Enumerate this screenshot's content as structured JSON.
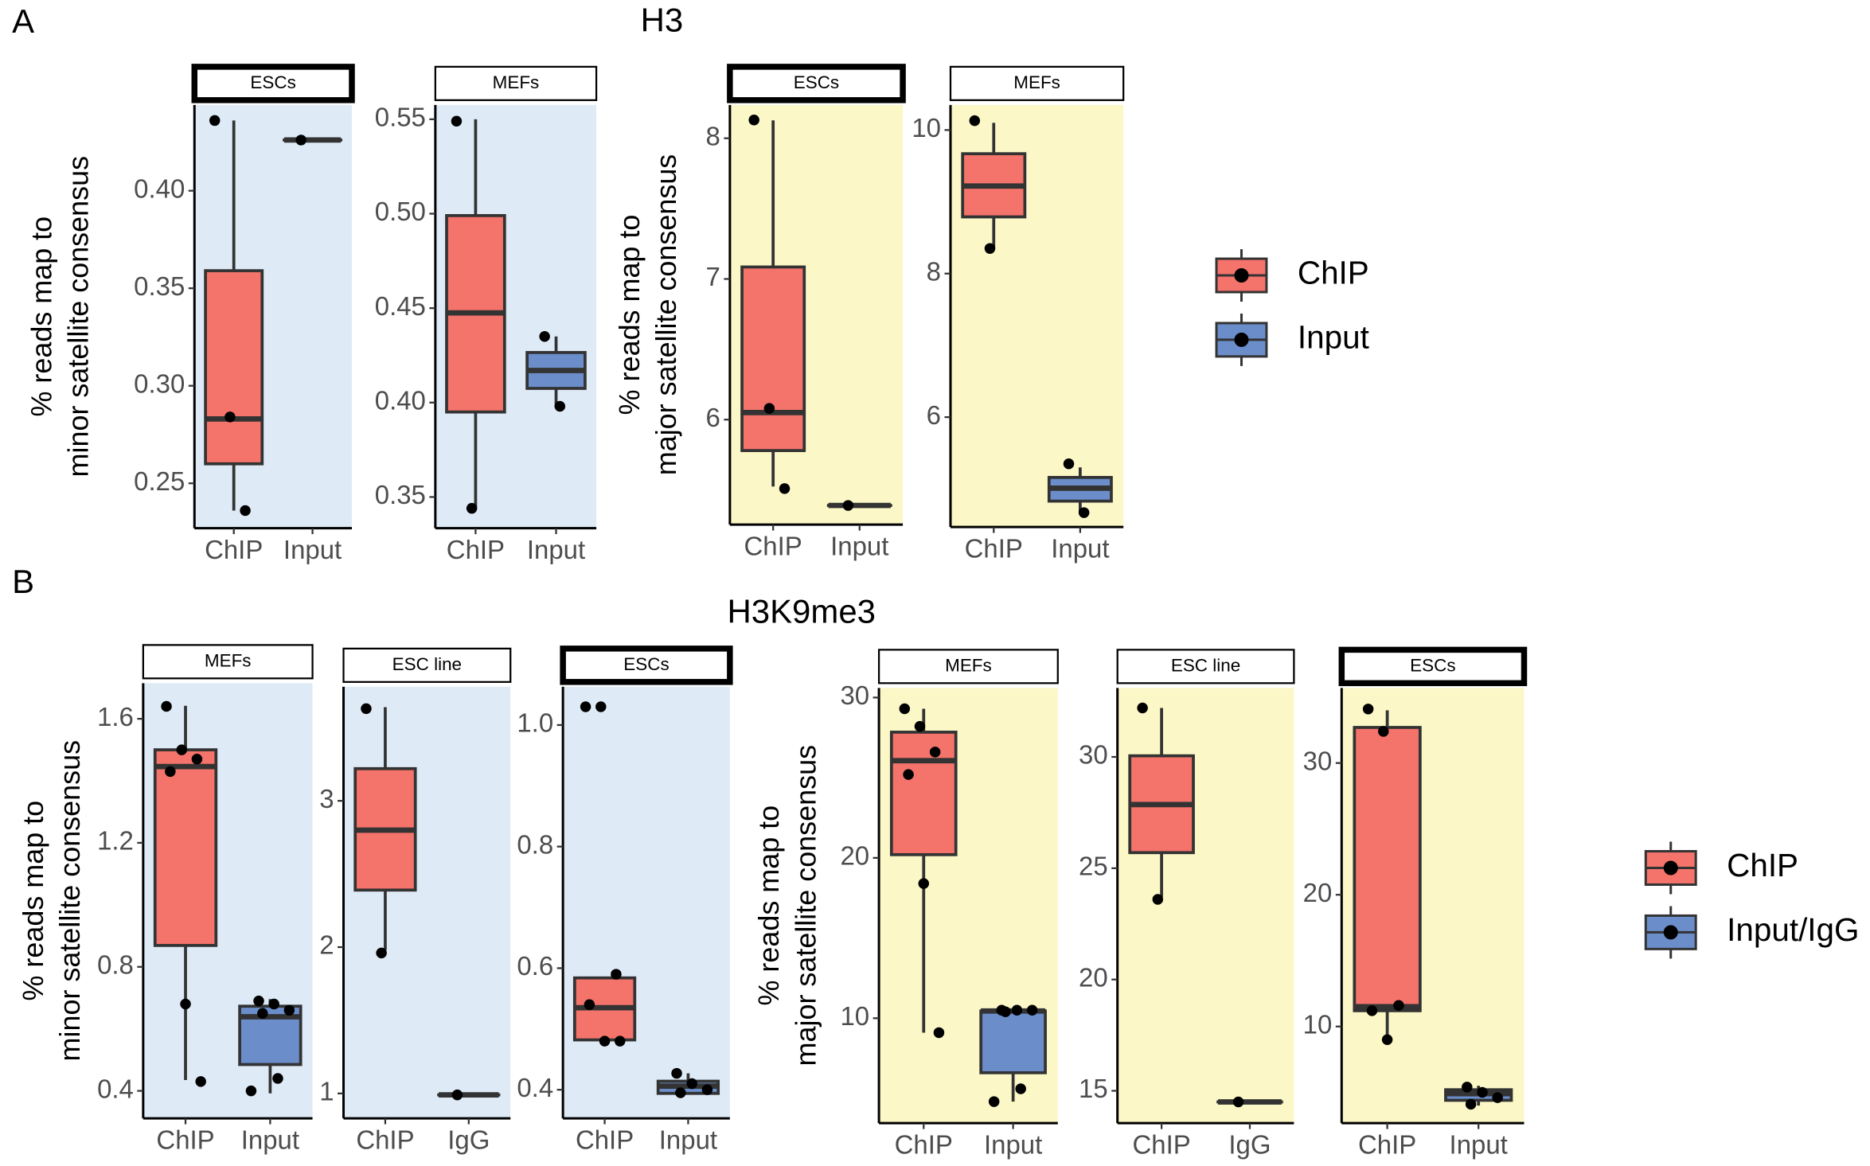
{
  "figure": {
    "panel_a": "A",
    "panel_b": "B",
    "title_a": "H3",
    "title_b": "H3K9me3"
  },
  "legends": [
    {
      "entries": [
        {
          "name": "ChIP",
          "color": "#f4736b"
        },
        {
          "name": "Input",
          "color": "#6b8ecb"
        }
      ]
    },
    {
      "entries": [
        {
          "name": "ChIP",
          "color": "#f4736b"
        },
        {
          "name": "Input/IgG",
          "color": "#6b8ecb"
        }
      ]
    }
  ],
  "chart_data": [
    {
      "type": "box",
      "strip": "ESCs",
      "strip_bold": true,
      "panel_color": "#deebf7",
      "ylabel": [
        "% reads map to",
        "minor satellite consensus"
      ],
      "ylim": [
        0.227,
        0.444
      ],
      "yticks": [
        0.25,
        {
          "value": 0.3,
          "label": "0.30"
        },
        0.35,
        {
          "value": 0.4,
          "label": "0.40"
        }
      ],
      "categories": [
        "ChIP",
        "Input"
      ],
      "boxes": [
        {
          "color": "#f4736b",
          "min": 0.236,
          "q1": 0.26,
          "median": 0.283,
          "q3": 0.359,
          "max": 0.436,
          "points": [
            0.436,
            0.284,
            0.236
          ]
        },
        {
          "color": "#6b8ecb",
          "min": 0.426,
          "q1": 0.426,
          "median": 0.426,
          "q3": 0.426,
          "max": 0.426,
          "points": [
            0.426
          ]
        }
      ]
    },
    {
      "type": "box",
      "strip": "MEFs",
      "strip_bold": false,
      "panel_color": "#deebf7",
      "ylim": [
        0.3335,
        0.5576
      ],
      "yticks": [
        0.35,
        {
          "value": 0.4,
          "label": "0.40"
        },
        0.45,
        {
          "value": 0.5,
          "label": "0.50"
        },
        0.55
      ],
      "categories": [
        "ChIP",
        "Input"
      ],
      "boxes": [
        {
          "color": "#f4736b",
          "min": 0.344,
          "q1": 0.395,
          "median": 0.4475,
          "q3": 0.499,
          "max": 0.55,
          "points": [
            0.549,
            0.344
          ]
        },
        {
          "color": "#6b8ecb",
          "min": 0.398,
          "q1": 0.4075,
          "median": 0.417,
          "q3": 0.4265,
          "max": 0.435,
          "points": [
            0.435,
            0.398
          ]
        }
      ]
    },
    {
      "type": "box",
      "strip": "ESCs",
      "strip_bold": true,
      "panel_color": "#fbf7c6",
      "ylabel": [
        "% reads map to",
        "major satellite consensus"
      ],
      "ylim": [
        5.254,
        8.237
      ],
      "yticks": [
        6,
        7,
        8
      ],
      "categories": [
        "ChIP",
        "Input"
      ],
      "boxes": [
        {
          "color": "#f4736b",
          "min": 5.525,
          "q1": 5.78,
          "median": 6.05,
          "q3": 7.085,
          "max": 8.127,
          "points": [
            8.13,
            6.08,
            5.51
          ]
        },
        {
          "color": "#6b8ecb",
          "min": 5.39,
          "q1": 5.39,
          "median": 5.39,
          "q3": 5.39,
          "max": 5.39,
          "points": [
            5.39
          ]
        }
      ]
    },
    {
      "type": "box",
      "strip": "MEFs",
      "strip_bold": false,
      "panel_color": "#fbf7c6",
      "ylim": [
        4.47,
        10.35
      ],
      "yticks": [
        6,
        8,
        10
      ],
      "categories": [
        "ChIP",
        "Input"
      ],
      "boxes": [
        {
          "color": "#f4736b",
          "min": 8.36,
          "q1": 8.79,
          "median": 9.22,
          "q3": 9.67,
          "max": 10.1,
          "points": [
            10.13,
            8.35
          ]
        },
        {
          "color": "#6b8ecb",
          "min": 4.67,
          "q1": 4.83,
          "median": 5.01,
          "q3": 5.16,
          "max": 5.3,
          "points": [
            5.35,
            4.67
          ]
        }
      ]
    },
    {
      "type": "box",
      "strip": "MEFs",
      "strip_bold": false,
      "panel_color": "#deebf7",
      "ylabel": [
        "% reads map to",
        "minor satellite consensus"
      ],
      "ylim": [
        0.3115,
        1.715
      ],
      "yticks": [
        0.4,
        0.8,
        1.2,
        1.6
      ],
      "categories": [
        "ChIP",
        "Input"
      ],
      "boxes": [
        {
          "color": "#f4736b",
          "min": 0.435,
          "q1": 0.869,
          "median": 1.446,
          "q3": 1.5,
          "max": 1.642,
          "points": [
            1.64,
            1.5,
            1.47,
            1.43,
            0.68,
            0.43
          ]
        },
        {
          "color": "#6b8ecb",
          "min": 0.392,
          "q1": 0.485,
          "median": 0.639,
          "q3": 0.673,
          "max": 0.696,
          "points": [
            0.69,
            0.68,
            0.66,
            0.65,
            0.44,
            0.4
          ]
        }
      ]
    },
    {
      "type": "box",
      "strip": "ESC line",
      "strip_bold": false,
      "panel_color": "#deebf7",
      "ylim": [
        0.83,
        3.78
      ],
      "yticks": [
        1,
        2,
        3
      ],
      "categories": [
        "ChIP",
        "IgG"
      ],
      "boxes": [
        {
          "color": "#f4736b",
          "min": 1.98,
          "q1": 2.39,
          "median": 2.8,
          "q3": 3.22,
          "max": 3.64,
          "points": [
            3.63,
            1.96
          ]
        },
        {
          "color": "#6b8ecb",
          "min": 0.99,
          "q1": 0.99,
          "median": 0.99,
          "q3": 0.99,
          "max": 0.99,
          "points": [
            0.99
          ]
        }
      ]
    },
    {
      "type": "box",
      "strip": "ESCs",
      "strip_bold": true,
      "panel_color": "#deebf7",
      "ylim": [
        0.353,
        1.063
      ],
      "yticks": [
        0.4,
        0.6,
        0.8,
        {
          "value": 1.0,
          "label": "1.0"
        }
      ],
      "categories": [
        "ChIP",
        "Input"
      ],
      "boxes": [
        {
          "color": "#f4736b",
          "min": 0.482,
          "q1": 0.482,
          "median": 0.535,
          "q3": 0.584,
          "max": 0.584,
          "points": [
            1.03,
            1.03,
            0.59,
            0.54,
            0.48,
            0.48
          ]
        },
        {
          "color": "#6b8ecb",
          "min": 0.392,
          "q1": 0.394,
          "median": 0.406,
          "q3": 0.414,
          "max": 0.427,
          "points": [
            0.427,
            0.41,
            0.4,
            0.395
          ]
        }
      ]
    },
    {
      "type": "box",
      "strip": "MEFs",
      "strip_bold": false,
      "panel_color": "#fbf7c6",
      "ylabel": [
        "% reads map to",
        "major satellite consensus"
      ],
      "ylim": [
        3.46,
        30.6
      ],
      "yticks": [
        10,
        20,
        30
      ],
      "categories": [
        "ChIP",
        "Input"
      ],
      "boxes": [
        {
          "color": "#f4736b",
          "min": 9.1,
          "q1": 20.2,
          "median": 26.06,
          "q3": 27.84,
          "max": 29.3,
          "points": [
            29.3,
            28.2,
            26.6,
            25.2,
            18.4,
            9.1
          ]
        },
        {
          "color": "#6b8ecb",
          "min": 4.8,
          "q1": 6.6,
          "median": 10.45,
          "q3": 10.45,
          "max": 10.45,
          "points": [
            10.5,
            10.5,
            10.5,
            10.4,
            5.6,
            4.8
          ]
        }
      ]
    },
    {
      "type": "box",
      "strip": "ESC line",
      "strip_bold": false,
      "panel_color": "#fbf7c6",
      "ylim": [
        13.55,
        33.1
      ],
      "yticks": [
        15,
        20,
        25,
        30
      ],
      "categories": [
        "ChIP",
        "IgG"
      ],
      "boxes": [
        {
          "color": "#f4736b",
          "min": 23.7,
          "q1": 25.7,
          "median": 27.86,
          "q3": 30.05,
          "max": 32.2,
          "points": [
            32.2,
            23.6
          ]
        },
        {
          "color": "#6b8ecb",
          "min": 14.5,
          "q1": 14.5,
          "median": 14.5,
          "q3": 14.5,
          "max": 14.5,
          "points": [
            14.5
          ]
        }
      ]
    },
    {
      "type": "box",
      "strip": "ESCs",
      "strip_bold": true,
      "panel_color": "#fbf7c6",
      "ylim": [
        2.67,
        35.7
      ],
      "yticks": [
        10,
        20,
        30
      ],
      "categories": [
        "ChIP",
        "Input"
      ],
      "boxes": [
        {
          "color": "#f4736b",
          "min": 9.1,
          "q1": 11.2,
          "median": 11.5,
          "q3": 32.7,
          "max": 34.0,
          "points": [
            34.1,
            32.4,
            11.6,
            11.2,
            9.0
          ]
        },
        {
          "color": "#6b8ecb",
          "min": 4.0,
          "q1": 4.4,
          "median": 4.9,
          "q3": 5.2,
          "max": 5.5,
          "points": [
            5.4,
            5.0,
            4.6,
            4.1
          ]
        }
      ]
    }
  ]
}
